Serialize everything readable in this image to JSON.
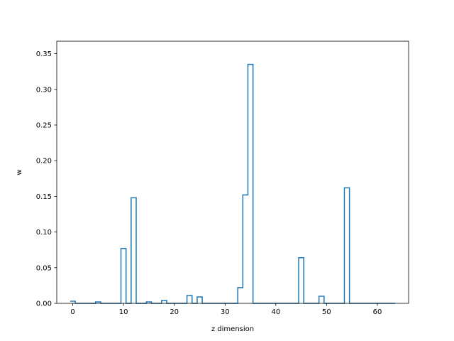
{
  "chart_data": {
    "type": "line",
    "style": "step-histogram",
    "title": "",
    "xlabel": "z dimension",
    "ylabel": "w",
    "xlim": [
      -3.15,
      66.15
    ],
    "ylim": [
      0,
      0.3675
    ],
    "grid": false,
    "legend": "none",
    "line_color": "#1f77b4",
    "xticks": [
      {
        "value": 0,
        "label": "0"
      },
      {
        "value": 10,
        "label": "10"
      },
      {
        "value": 20,
        "label": "20"
      },
      {
        "value": 30,
        "label": "30"
      },
      {
        "value": 40,
        "label": "40"
      },
      {
        "value": 50,
        "label": "50"
      },
      {
        "value": 60,
        "label": "60"
      }
    ],
    "yticks": [
      {
        "value": 0.0,
        "label": "0.00"
      },
      {
        "value": 0.05,
        "label": "0.05"
      },
      {
        "value": 0.1,
        "label": "0.10"
      },
      {
        "value": 0.15,
        "label": "0.15"
      },
      {
        "value": 0.2,
        "label": "0.20"
      },
      {
        "value": 0.25,
        "label": "0.25"
      },
      {
        "value": 0.3,
        "label": "0.30"
      },
      {
        "value": 0.35,
        "label": "0.35"
      }
    ],
    "series": [
      {
        "x": [
          0,
          1,
          2,
          3,
          4,
          5,
          6,
          7,
          8,
          9,
          10,
          11,
          12,
          13,
          14,
          15,
          16,
          17,
          18,
          19,
          20,
          21,
          22,
          23,
          24,
          25,
          26,
          27,
          28,
          29,
          30,
          31,
          32,
          33,
          34,
          35,
          36,
          37,
          38,
          39,
          40,
          41,
          42,
          43,
          44,
          45,
          46,
          47,
          48,
          49,
          50,
          51,
          52,
          53,
          54,
          55,
          56,
          57,
          58,
          59,
          60,
          61,
          62,
          63
        ],
        "values": [
          0.003,
          0,
          0,
          0,
          0,
          0.002,
          0,
          0,
          0,
          0,
          0.077,
          0,
          0.148,
          0,
          0,
          0.002,
          0,
          0,
          0.004,
          0,
          0,
          0,
          0,
          0.011,
          0,
          0.009,
          0,
          0,
          0,
          0,
          0,
          0,
          0,
          0.022,
          0.152,
          0.335,
          0,
          0,
          0,
          0,
          0,
          0,
          0,
          0,
          0,
          0.064,
          0,
          0,
          0,
          0.01,
          0,
          0,
          0,
          0,
          0.162,
          0,
          0,
          0,
          0,
          0,
          0,
          0,
          0,
          0
        ]
      }
    ]
  }
}
